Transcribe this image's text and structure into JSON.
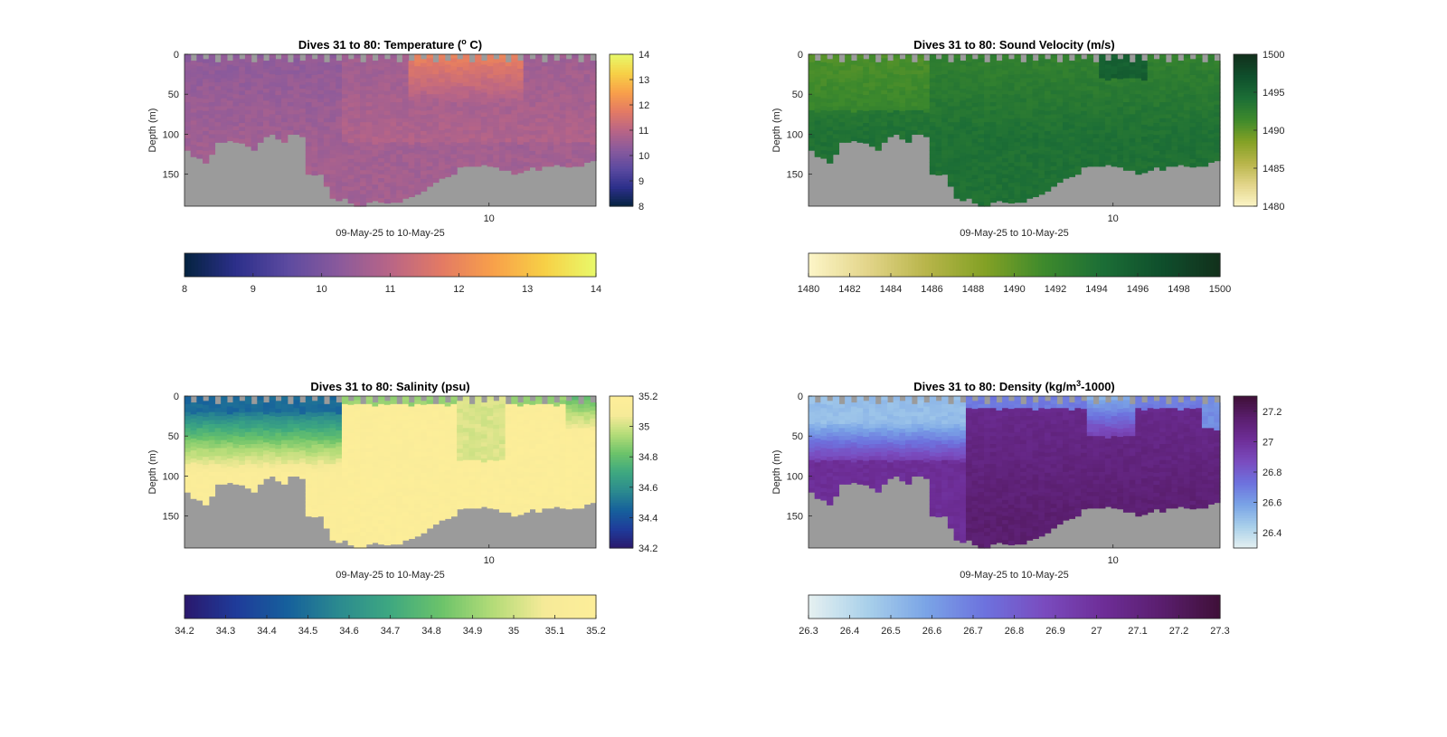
{
  "figure": {
    "background": "#ffffff",
    "nan_color": "#9b9b9b",
    "xlabel": "09-May-25 to 10-May-25",
    "ylabel": "Depth (m)"
  },
  "chart_data": [
    {
      "id": "temperature",
      "type": "heatmap",
      "title": "Dives 31 to 80: Temperature (",
      "title_sup": "o",
      "title_tail": " C)",
      "xlabel": "09-May-25 to 10-May-25",
      "ylabel": "Depth (m)",
      "x_ticks": [
        "10"
      ],
      "y_ticks": [
        0,
        50,
        100,
        150
      ],
      "ylim": [
        0,
        190
      ],
      "y_reversed": true,
      "dives": [
        31,
        80
      ],
      "colormap": "thermal",
      "clim": [
        8,
        14
      ],
      "side_colorbar_ticks": [
        "14",
        "13",
        "12",
        "11",
        "10",
        "9",
        "8"
      ],
      "bottom_colorbar_ticks": [
        "8",
        "9",
        "10",
        "11",
        "12",
        "13",
        "14"
      ],
      "bottom_depth_m": [
        120,
        124,
        130,
        134,
        124,
        108,
        106,
        108,
        106,
        110,
        112,
        116,
        110,
        102,
        100,
        105,
        106,
        98,
        96,
        100,
        150,
        150,
        150,
        165,
        178,
        182,
        180,
        182,
        186,
        186,
        183,
        182,
        185,
        183,
        182,
        181,
        180,
        178,
        175,
        168,
        162,
        158,
        155,
        150,
        148,
        140,
        138,
        136,
        137,
        138,
        140,
        141,
        142,
        143,
        147,
        146,
        143,
        141,
        145,
        140,
        140,
        135,
        138,
        140,
        137,
        136,
        135,
        130
      ],
      "color_bands_m": [
        {
          "to_depth": 20,
          "value": 10.2
        },
        {
          "to_depth": 60,
          "value": 10.4
        },
        {
          "to_depth": 110,
          "value": 10.8
        },
        {
          "to_depth": 190,
          "value": 11.0
        }
      ]
    },
    {
      "id": "sound_velocity",
      "type": "heatmap",
      "title": "Dives 31 to 80: Sound Velocity (m/s)",
      "xlabel": "09-May-25 to 10-May-25",
      "ylabel": "Depth (m)",
      "x_ticks": [
        "10"
      ],
      "y_ticks": [
        0,
        50,
        100,
        150
      ],
      "ylim": [
        0,
        190
      ],
      "y_reversed": true,
      "dives": [
        31,
        80
      ],
      "colormap": "speed",
      "clim": [
        1480,
        1500
      ],
      "side_colorbar_ticks": [
        "1500",
        "1495",
        "1490",
        "1485",
        "1480"
      ],
      "bottom_colorbar_ticks": [
        "1480",
        "1482",
        "1484",
        "1486",
        "1488",
        "1490",
        "1492",
        "1494",
        "1496",
        "1498",
        "1500"
      ],
      "bottom_depth_m": [
        120,
        124,
        130,
        134,
        124,
        108,
        106,
        108,
        106,
        110,
        112,
        116,
        110,
        102,
        100,
        105,
        106,
        98,
        96,
        100,
        150,
        150,
        150,
        165,
        178,
        182,
        180,
        182,
        186,
        186,
        183,
        182,
        185,
        183,
        182,
        181,
        180,
        178,
        175,
        168,
        162,
        158,
        155,
        150,
        148,
        140,
        138,
        136,
        137,
        138,
        140,
        141,
        142,
        143,
        147,
        146,
        143,
        141,
        145,
        140,
        140,
        135,
        138,
        140,
        137,
        136,
        135,
        130
      ]
    },
    {
      "id": "salinity",
      "type": "heatmap",
      "title": "Dives 31 to 80: Salinity (psu)",
      "xlabel": "09-May-25 to 10-May-25",
      "ylabel": "Depth (m)",
      "x_ticks": [
        "10"
      ],
      "y_ticks": [
        0,
        50,
        100,
        150
      ],
      "ylim": [
        0,
        190
      ],
      "y_reversed": true,
      "dives": [
        31,
        80
      ],
      "colormap": "haline",
      "clim": [
        34.2,
        35.2
      ],
      "side_colorbar_ticks": [
        "35.2",
        "35",
        "34.8",
        "34.6",
        "34.4",
        "34.2"
      ],
      "bottom_colorbar_ticks": [
        "34.2",
        "34.3",
        "34.4",
        "34.5",
        "34.6",
        "34.7",
        "34.8",
        "34.9",
        "35",
        "35.1",
        "35.2"
      ],
      "bottom_depth_m": [
        120,
        124,
        130,
        134,
        124,
        108,
        106,
        108,
        106,
        110,
        112,
        116,
        110,
        102,
        100,
        105,
        106,
        98,
        96,
        100,
        150,
        150,
        150,
        165,
        178,
        182,
        180,
        182,
        186,
        186,
        183,
        182,
        185,
        183,
        182,
        181,
        180,
        178,
        175,
        168,
        162,
        158,
        155,
        150,
        148,
        140,
        138,
        136,
        137,
        138,
        140,
        141,
        142,
        143,
        147,
        146,
        143,
        141,
        145,
        140,
        140,
        135,
        138,
        140,
        137,
        136,
        135,
        130
      ]
    },
    {
      "id": "density",
      "type": "heatmap",
      "title": "Dives 31 to 80: Density (kg/m",
      "title_sup": "3",
      "title_tail": "-1000)",
      "xlabel": "09-May-25 to 10-May-25",
      "ylabel": "Depth (m)",
      "x_ticks": [
        "10"
      ],
      "y_ticks": [
        0,
        50,
        100,
        150
      ],
      "ylim": [
        0,
        190
      ],
      "y_reversed": true,
      "dives": [
        31,
        80
      ],
      "colormap": "dense",
      "clim": [
        26.3,
        27.3
      ],
      "side_colorbar_ticks": [
        "27.2",
        "27",
        "26.8",
        "26.6",
        "26.4"
      ],
      "bottom_colorbar_ticks": [
        "26.3",
        "26.4",
        "26.5",
        "26.6",
        "26.7",
        "26.8",
        "26.9",
        "27",
        "27.1",
        "27.2",
        "27.3"
      ],
      "bottom_depth_m": [
        120,
        124,
        130,
        134,
        124,
        108,
        106,
        108,
        106,
        110,
        112,
        116,
        110,
        102,
        100,
        105,
        106,
        98,
        96,
        100,
        150,
        150,
        150,
        165,
        178,
        182,
        180,
        182,
        186,
        186,
        183,
        182,
        185,
        183,
        182,
        181,
        180,
        178,
        175,
        168,
        162,
        158,
        155,
        150,
        148,
        140,
        138,
        136,
        137,
        138,
        140,
        141,
        142,
        143,
        147,
        146,
        143,
        141,
        145,
        140,
        140,
        135,
        138,
        140,
        137,
        136,
        135,
        130
      ]
    }
  ],
  "colormaps": {
    "thermal": [
      "#04233f",
      "#2c2f8a",
      "#5c4aa0",
      "#8a5a9c",
      "#b96586",
      "#e37a64",
      "#f8a04a",
      "#f7d046",
      "#e8f96a"
    ],
    "speed": [
      "#fdf6c8",
      "#e3d58a",
      "#b8b54a",
      "#83a125",
      "#3e8a2c",
      "#1c6e36",
      "#0f4f2c",
      "#12301c"
    ],
    "haline": [
      "#2a186c",
      "#1f3b9a",
      "#16609c",
      "#2b8a8f",
      "#3ea880",
      "#6cc36a",
      "#b4dc78",
      "#f6ea98",
      "#fdee99"
    ],
    "dense": [
      "#e6f1f1",
      "#a9d0ea",
      "#7aa4e6",
      "#6d72de",
      "#7a4cbf",
      "#6e2e98",
      "#5a1e6e",
      "#3f1038"
    ]
  }
}
